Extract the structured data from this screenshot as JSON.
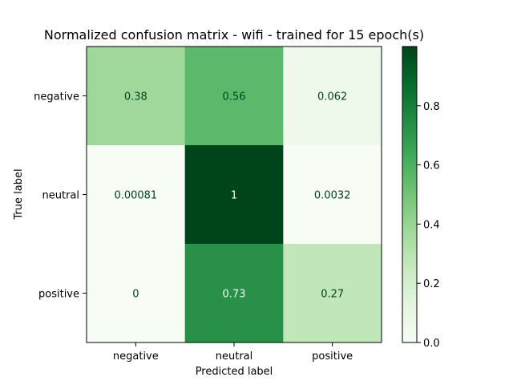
{
  "chart_data": {
    "type": "heatmap",
    "title": "Normalized confusion matrix - wifi - trained for 15 epoch(s)",
    "xlabel": "Predicted label",
    "ylabel": "True label",
    "x_categories": [
      "negative",
      "neutral",
      "positive"
    ],
    "y_categories": [
      "negative",
      "neutral",
      "positive"
    ],
    "values": [
      [
        0.38,
        0.56,
        0.062
      ],
      [
        0.00081,
        1,
        0.0032
      ],
      [
        0,
        0.73,
        0.27
      ]
    ],
    "value_labels": [
      [
        "0.38",
        "0.56",
        "0.062"
      ],
      [
        "0.00081",
        "1",
        "0.0032"
      ],
      [
        "0",
        "0.73",
        "0.27"
      ]
    ],
    "colormap": "Greens",
    "colorbar": {
      "range": [
        0.0,
        1.0
      ],
      "ticks": [
        0.0,
        0.2,
        0.4,
        0.6,
        0.8
      ],
      "tick_labels": [
        "0.0",
        "0.2",
        "0.4",
        "0.6",
        "0.8"
      ]
    },
    "grid": false
  }
}
